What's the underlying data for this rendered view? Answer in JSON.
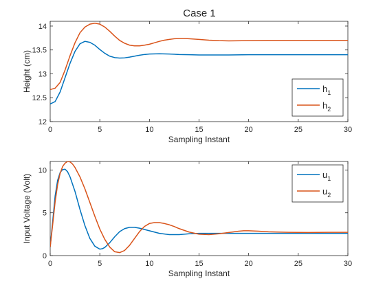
{
  "title": "Case 1",
  "colors": {
    "series1": "#0072BD",
    "series2": "#D95319",
    "axis": "#262626",
    "background": "#ffffff"
  },
  "chart_data": [
    {
      "type": "line",
      "xlabel": "Sampling Instant",
      "ylabel": "Height (cm)",
      "xlim": [
        0,
        30
      ],
      "ylim": [
        12,
        14.1
      ],
      "xticks": [
        0,
        5,
        10,
        15,
        20,
        25,
        30
      ],
      "yticks": [
        12,
        12.5,
        13,
        13.5,
        14
      ],
      "ytick_labels": [
        "12",
        "12.5",
        "13",
        "13.5",
        "14"
      ],
      "grid": false,
      "legend_location": "bottom-right",
      "series": [
        {
          "name": "h",
          "subscript": "1",
          "x": [
            0,
            0.5,
            1,
            1.5,
            2,
            2.5,
            3,
            3.5,
            4,
            4.5,
            5,
            5.5,
            6,
            6.5,
            7,
            7.5,
            8,
            8.5,
            9,
            9.5,
            10,
            11,
            12,
            13,
            14,
            15,
            16,
            18,
            20,
            22,
            24,
            26,
            28,
            30
          ],
          "y": [
            12.37,
            12.42,
            12.62,
            12.92,
            13.22,
            13.47,
            13.63,
            13.68,
            13.66,
            13.6,
            13.51,
            13.43,
            13.37,
            13.34,
            13.33,
            13.335,
            13.35,
            13.37,
            13.39,
            13.405,
            13.415,
            13.42,
            13.415,
            13.405,
            13.4,
            13.395,
            13.395,
            13.395,
            13.4,
            13.4,
            13.4,
            13.4,
            13.4,
            13.4
          ]
        },
        {
          "name": "h",
          "subscript": "2",
          "x": [
            0,
            0.5,
            1,
            1.5,
            2,
            2.5,
            3,
            3.5,
            4,
            4.5,
            5,
            5.5,
            6,
            6.5,
            7,
            7.5,
            8,
            8.5,
            9,
            9.5,
            10,
            10.5,
            11,
            11.5,
            12,
            12.5,
            13,
            13.5,
            14,
            15,
            16,
            17,
            18,
            20,
            22,
            24,
            26,
            28,
            30
          ],
          "y": [
            12.67,
            12.7,
            12.82,
            13.08,
            13.38,
            13.65,
            13.86,
            13.98,
            14.04,
            14.06,
            14.04,
            13.98,
            13.89,
            13.79,
            13.7,
            13.64,
            13.6,
            13.585,
            13.585,
            13.6,
            13.62,
            13.65,
            13.68,
            13.705,
            13.72,
            13.735,
            13.74,
            13.74,
            13.735,
            13.72,
            13.705,
            13.695,
            13.69,
            13.695,
            13.7,
            13.7,
            13.7,
            13.7,
            13.7
          ]
        }
      ]
    },
    {
      "type": "line",
      "xlabel": "Sampling Instant",
      "ylabel": "Input Voltage (Volt)",
      "xlim": [
        0,
        30
      ],
      "ylim": [
        0,
        11
      ],
      "xticks": [
        0,
        5,
        10,
        15,
        20,
        25,
        30
      ],
      "yticks": [
        0,
        5,
        10
      ],
      "ytick_labels": [
        "0",
        "5",
        "10"
      ],
      "grid": false,
      "legend_location": "top-right",
      "series": [
        {
          "name": "u",
          "subscript": "1",
          "x": [
            0,
            0.25,
            0.5,
            0.75,
            1,
            1.25,
            1.5,
            1.75,
            2,
            2.5,
            3,
            3.5,
            4,
            4.5,
            5,
            5.25,
            5.5,
            6,
            6.5,
            7,
            7.5,
            8,
            8.5,
            9,
            9.5,
            10,
            10.5,
            11,
            12,
            13,
            14,
            15,
            16,
            18,
            20,
            22,
            24,
            26,
            28,
            30
          ],
          "y": [
            1,
            4,
            7,
            8.8,
            9.7,
            10.05,
            10.1,
            9.8,
            9.2,
            7.5,
            5.4,
            3.5,
            2.0,
            1.1,
            0.75,
            0.8,
            0.95,
            1.5,
            2.2,
            2.8,
            3.15,
            3.3,
            3.3,
            3.2,
            3.05,
            2.9,
            2.75,
            2.6,
            2.45,
            2.45,
            2.55,
            2.6,
            2.6,
            2.6,
            2.6,
            2.6,
            2.6,
            2.6,
            2.6,
            2.6
          ]
        },
        {
          "name": "u",
          "subscript": "2",
          "x": [
            0,
            0.25,
            0.5,
            0.75,
            1,
            1.25,
            1.5,
            1.75,
            2,
            2.25,
            2.5,
            3,
            3.5,
            4,
            4.5,
            5,
            5.5,
            6,
            6.5,
            7,
            7.5,
            8,
            8.5,
            9,
            9.5,
            10,
            10.5,
            11,
            11.5,
            12,
            12.5,
            13,
            14,
            15,
            16,
            17,
            18,
            19,
            19.5,
            20,
            21,
            22,
            24,
            26,
            28,
            30
          ],
          "y": [
            1,
            3.6,
            6.3,
            8.3,
            9.6,
            10.4,
            10.8,
            11.0,
            10.95,
            10.7,
            10.3,
            9.2,
            7.8,
            6.2,
            4.6,
            3.1,
            1.9,
            1.0,
            0.45,
            0.35,
            0.6,
            1.2,
            2.0,
            2.8,
            3.4,
            3.75,
            3.85,
            3.85,
            3.75,
            3.6,
            3.4,
            3.15,
            2.75,
            2.5,
            2.45,
            2.55,
            2.7,
            2.85,
            2.9,
            2.9,
            2.85,
            2.78,
            2.72,
            2.7,
            2.72,
            2.72
          ]
        }
      ]
    }
  ]
}
